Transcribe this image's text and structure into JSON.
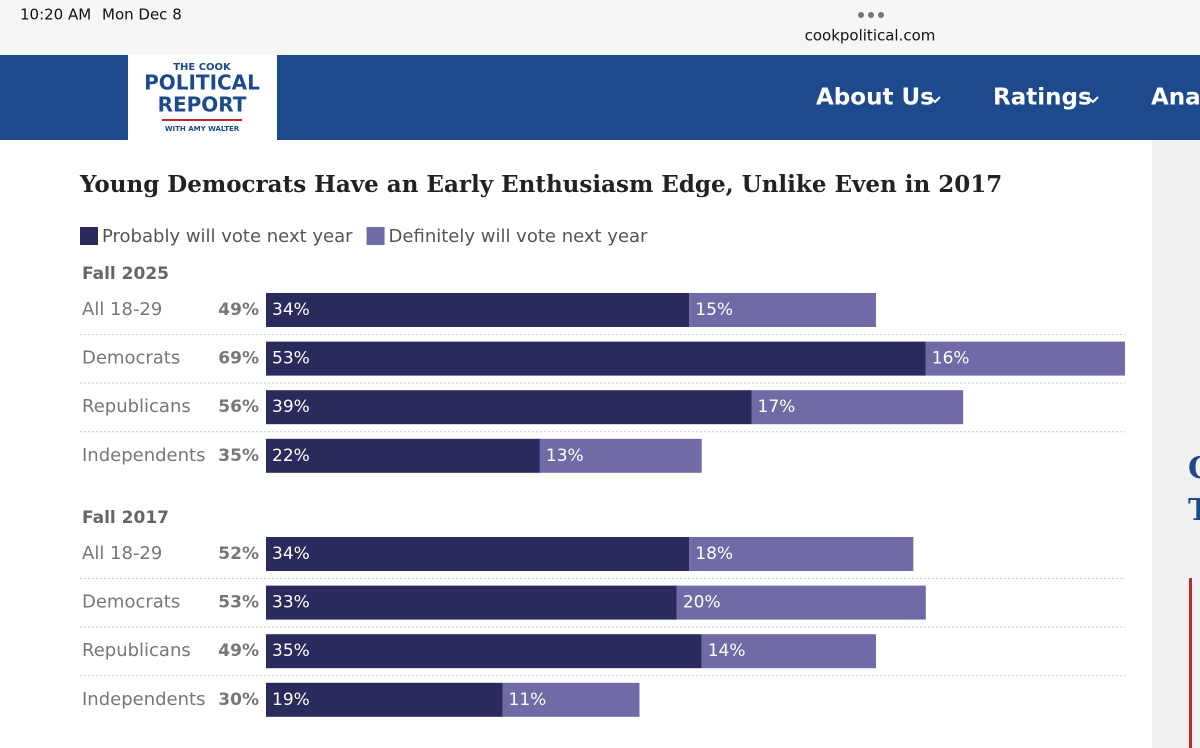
{
  "status_bar": {
    "time": "10:20 AM",
    "date": "Mon Dec 8",
    "url": "cookpolitical.com"
  },
  "logo": {
    "line1": "THE COOK",
    "line2": "POLITICAL",
    "line3": "REPORT",
    "line4": "WITH AMY WALTER"
  },
  "nav": [
    "About Us",
    "Ratings",
    "Anal"
  ],
  "sidebar": [
    "C",
    "T"
  ],
  "chart_data": {
    "type": "bar",
    "orientation": "horizontal",
    "stacked": true,
    "title": "Young Democrats Have an Early Enthusiasm Edge, Unlike Even in 2017",
    "xlim": [
      0,
      69
    ],
    "series": [
      {
        "name": "Probably will vote next year",
        "color": "#2b2a5c"
      },
      {
        "name": "Definitely will vote next year",
        "color": "#6f6ba7"
      }
    ],
    "groups": [
      {
        "label": "Fall 2025",
        "categories": [
          "All 18-29",
          "Democrats",
          "Republicans",
          "Independents"
        ],
        "totals": [
          49,
          69,
          56,
          35
        ],
        "total_labels": [
          "49%",
          "69%",
          "56%",
          "35%"
        ],
        "series": [
          {
            "values": [
              34,
              53,
              39,
              22
            ],
            "value_labels": [
              "34%",
              "53%",
              "39%",
              "22%"
            ]
          },
          {
            "values": [
              15,
              16,
              17,
              13
            ],
            "value_labels": [
              "15%",
              "16%",
              "17%",
              "13%"
            ]
          }
        ]
      },
      {
        "label": "Fall 2017",
        "categories": [
          "All 18-29",
          "Democrats",
          "Republicans",
          "Independents"
        ],
        "totals": [
          52,
          53,
          49,
          30
        ],
        "total_labels": [
          "52%",
          "53%",
          "49%",
          "30%"
        ],
        "series": [
          {
            "values": [
              34,
              33,
              35,
              19
            ],
            "value_labels": [
              "34%",
              "33%",
              "35%",
              "19%"
            ]
          },
          {
            "values": [
              18,
              20,
              14,
              11
            ],
            "value_labels": [
              "18%",
              "20%",
              "14%",
              "11%"
            ]
          }
        ]
      }
    ]
  }
}
